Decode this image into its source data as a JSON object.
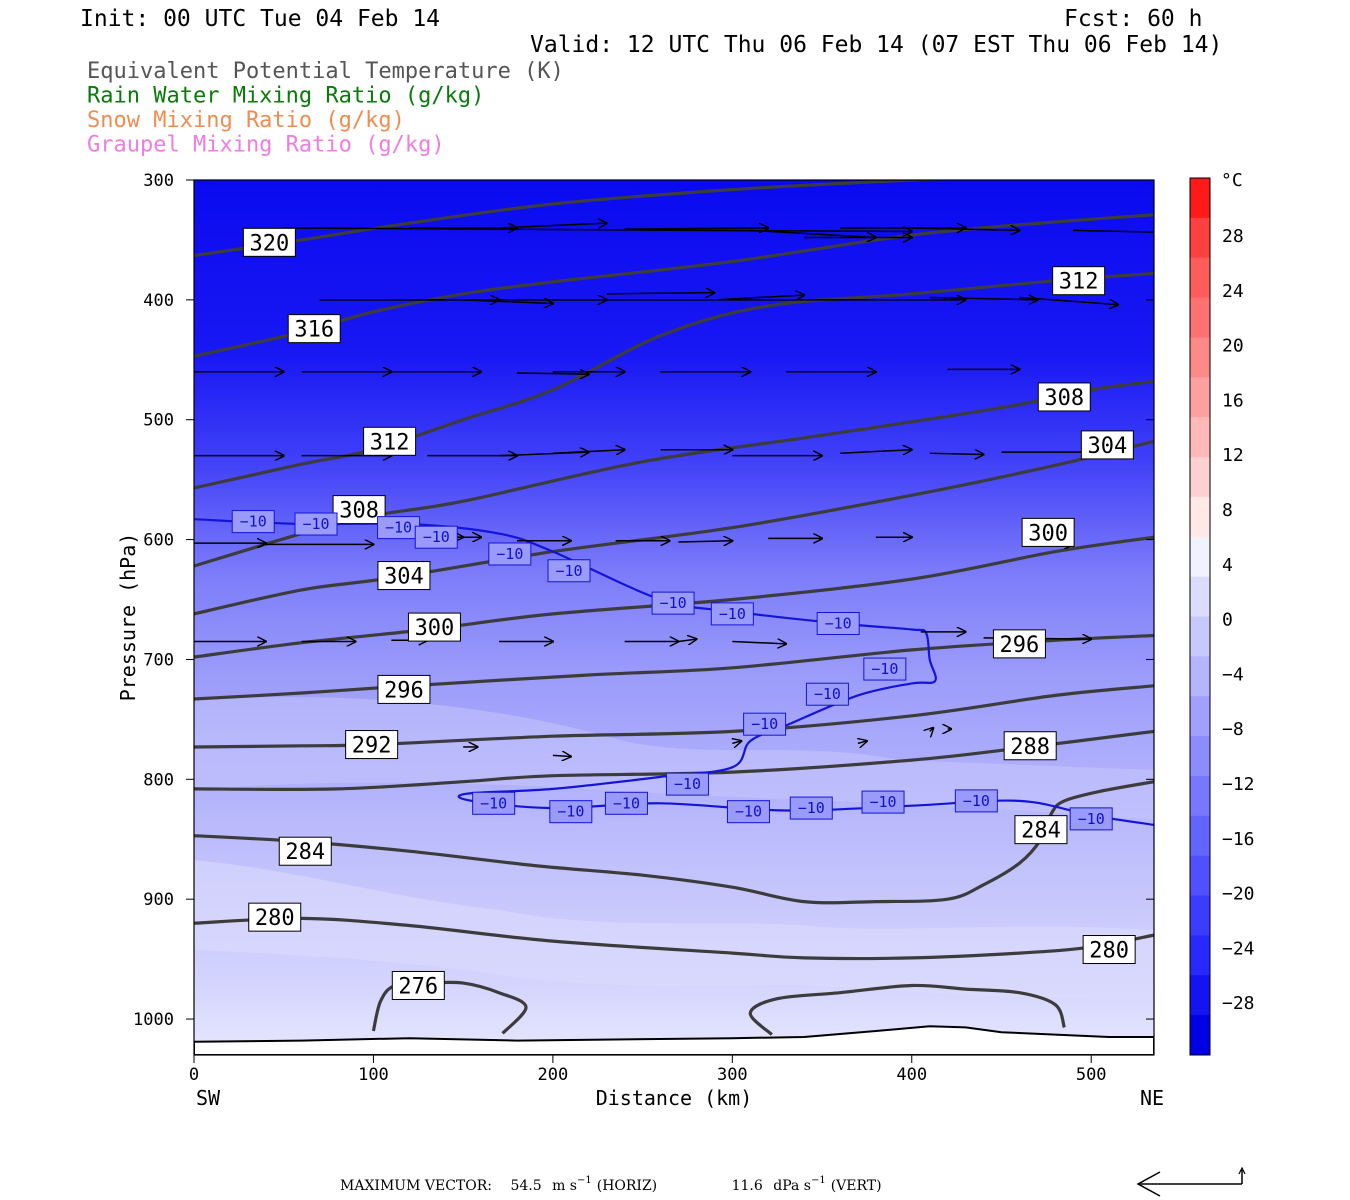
{
  "header": {
    "init": "Init: 00 UTC Tue 04 Feb 14",
    "fcst": "Fcst:   60 h",
    "valid": "Valid: 12 UTC Thu 06 Feb 14 (07 EST Thu 06 Feb 14)"
  },
  "fields": [
    {
      "label": "Equivalent Potential Temperature (K)",
      "color": "#555555"
    },
    {
      "label": "Rain Water Mixing Ratio (g/kg)",
      "color": "#0a7a0a"
    },
    {
      "label": "Snow Mixing Ratio (g/kg)",
      "color": "#f08c50"
    },
    {
      "label": "Graupel Mixing Ratio (g/kg)",
      "color": "#f07ce0"
    }
  ],
  "chart_data": {
    "type": "heatmap",
    "xlabel": "Distance (km)",
    "ylabel": "Pressure (hPa)",
    "xlim": [
      0,
      535
    ],
    "ylim": [
      1030,
      300
    ],
    "x_ticks": [
      0,
      100,
      200,
      300,
      400,
      500
    ],
    "y_ticks": [
      300,
      400,
      500,
      600,
      700,
      800,
      900,
      1000
    ],
    "x_end_labels": {
      "left": "SW",
      "right": "NE"
    },
    "colorbar": {
      "unit": "°C",
      "labels": [
        28,
        24,
        20,
        16,
        12,
        8,
        4,
        0,
        -4,
        -8,
        -12,
        -16,
        -20,
        -24,
        -28
      ],
      "colors": [
        "#ff1a1a",
        "#ff4040",
        "#ff5c5c",
        "#ff7070",
        "#ff8888",
        "#ffa0a0",
        "#ffb8b8",
        "#ffd0d0",
        "#ffe8e8",
        "#f2f2ff",
        "#dcdcff",
        "#c8c8ff",
        "#b4b4ff",
        "#a0a0ff",
        "#8c8cff",
        "#7878ff",
        "#6464ff",
        "#5050ff",
        "#3c3cff",
        "#2828ff",
        "#1414f0",
        "#0000e6"
      ]
    },
    "theta_e_contours": [
      {
        "level": 320,
        "points": [
          [
            0,
            363
          ],
          [
            60,
            350
          ],
          [
            120,
            336
          ],
          [
            200,
            320
          ],
          [
            300,
            308
          ],
          [
            400,
            300
          ],
          [
            480,
            295
          ],
          [
            535,
            290
          ]
        ],
        "labels": [
          [
            42,
            352
          ]
        ]
      },
      {
        "level": 316,
        "points": [
          [
            0,
            447
          ],
          [
            60,
            427
          ],
          [
            100,
            410
          ],
          [
            150,
            395
          ],
          [
            200,
            385
          ],
          [
            300,
            368
          ],
          [
            400,
            346
          ],
          [
            480,
            335
          ],
          [
            535,
            329
          ]
        ],
        "labels": [
          [
            67,
            424
          ]
        ]
      },
      {
        "level": 312,
        "points": [
          [
            0,
            557
          ],
          [
            60,
            537
          ],
          [
            100,
            525
          ],
          [
            150,
            500
          ],
          [
            200,
            475
          ],
          [
            260,
            430
          ],
          [
            320,
            405
          ],
          [
            400,
            395
          ],
          [
            480,
            384
          ],
          [
            535,
            378
          ]
        ],
        "labels": [
          [
            109,
            518
          ],
          [
            493,
            384
          ]
        ]
      },
      {
        "level": 308,
        "points": [
          [
            0,
            622
          ],
          [
            60,
            595
          ],
          [
            100,
            580
          ],
          [
            150,
            568
          ],
          [
            250,
            535
          ],
          [
            350,
            513
          ],
          [
            450,
            490
          ],
          [
            500,
            475
          ],
          [
            535,
            468
          ]
        ],
        "labels": [
          [
            92,
            575
          ],
          [
            485,
            481
          ]
        ]
      },
      {
        "level": 304,
        "points": [
          [
            0,
            662
          ],
          [
            60,
            642
          ],
          [
            110,
            632
          ],
          [
            200,
            610
          ],
          [
            300,
            590
          ],
          [
            400,
            563
          ],
          [
            480,
            538
          ],
          [
            535,
            518
          ]
        ],
        "labels": [
          [
            117,
            630
          ],
          [
            509,
            521
          ]
        ]
      },
      {
        "level": 300,
        "points": [
          [
            0,
            698
          ],
          [
            60,
            686
          ],
          [
            130,
            675
          ],
          [
            200,
            662
          ],
          [
            300,
            650
          ],
          [
            400,
            633
          ],
          [
            480,
            610
          ],
          [
            535,
            598
          ]
        ],
        "labels": [
          [
            134,
            673
          ],
          [
            476,
            594
          ]
        ]
      },
      {
        "level": 296,
        "points": [
          [
            0,
            733
          ],
          [
            60,
            728
          ],
          [
            120,
            722
          ],
          [
            220,
            713
          ],
          [
            300,
            707
          ],
          [
            400,
            692
          ],
          [
            480,
            684
          ],
          [
            535,
            680
          ]
        ],
        "labels": [
          [
            117,
            725
          ],
          [
            460,
            687
          ]
        ]
      },
      {
        "level": 292,
        "points": [
          [
            0,
            773
          ],
          [
            60,
            772
          ],
          [
            100,
            771
          ],
          [
            200,
            764
          ],
          [
            300,
            760
          ],
          [
            400,
            747
          ],
          [
            480,
            730
          ],
          [
            535,
            722
          ]
        ],
        "labels": [
          [
            99,
            771
          ]
        ]
      },
      {
        "level": 288,
        "points": [
          [
            0,
            808
          ],
          [
            80,
            808
          ],
          [
            150,
            802
          ],
          [
            200,
            797
          ],
          [
            300,
            794
          ],
          [
            400,
            784
          ],
          [
            460,
            774
          ],
          [
            535,
            760
          ]
        ],
        "labels": [
          [
            466,
            772
          ]
        ]
      },
      {
        "level": 284,
        "points": [
          [
            0,
            847
          ],
          [
            60,
            852
          ],
          [
            120,
            860
          ],
          [
            190,
            872
          ],
          [
            250,
            880
          ],
          [
            300,
            890
          ],
          [
            340,
            902
          ],
          [
            380,
            902
          ],
          [
            420,
            900
          ],
          [
            440,
            888
          ],
          [
            460,
            870
          ],
          [
            472,
            850
          ],
          [
            478,
            828
          ],
          [
            485,
            818
          ],
          [
            505,
            810
          ],
          [
            535,
            802
          ]
        ],
        "labels": [
          [
            62,
            860
          ],
          [
            472,
            842
          ]
        ]
      },
      {
        "level": 280,
        "points": [
          [
            0,
            920
          ],
          [
            60,
            916
          ],
          [
            120,
            922
          ],
          [
            200,
            935
          ],
          [
            300,
            945
          ],
          [
            340,
            949
          ],
          [
            400,
            949
          ],
          [
            460,
            945
          ],
          [
            500,
            940
          ],
          [
            535,
            930
          ]
        ],
        "labels": [
          [
            45,
            915
          ],
          [
            510,
            942
          ]
        ]
      },
      {
        "level": 276,
        "points": [
          [
            100,
            1010
          ],
          [
            104,
            985
          ],
          [
            112,
            972
          ],
          [
            130,
            970
          ],
          [
            150,
            970
          ],
          [
            170,
            978
          ],
          [
            185,
            990
          ],
          [
            172,
            1012
          ]
        ],
        "labels": [
          [
            125,
            972
          ]
        ]
      },
      {
        "level": 276,
        "points": [
          [
            322,
            1013
          ],
          [
            310,
            995
          ],
          [
            325,
            983
          ],
          [
            360,
            978
          ],
          [
            400,
            972
          ],
          [
            430,
            975
          ],
          [
            460,
            978
          ],
          [
            480,
            988
          ],
          [
            485,
            1007
          ]
        ],
        "labels": []
      }
    ],
    "temp_contours": [
      {
        "level": -10,
        "points": [
          [
            0,
            583
          ],
          [
            60,
            587
          ],
          [
            120,
            587
          ],
          [
            170,
            595
          ],
          [
            200,
            610
          ],
          [
            260,
            650
          ],
          [
            300,
            660
          ],
          [
            360,
            670
          ],
          [
            400,
            675
          ],
          [
            408,
            678
          ],
          [
            410,
            700
          ],
          [
            413,
            718
          ],
          [
            400,
            720
          ],
          [
            370,
            730
          ],
          [
            330,
            755
          ],
          [
            310,
            768
          ],
          [
            300,
            790
          ],
          [
            260,
            798
          ],
          [
            200,
            808
          ],
          [
            152,
            812
          ],
          [
            155,
            818
          ],
          [
            200,
            824
          ],
          [
            260,
            820
          ],
          [
            330,
            826
          ],
          [
            400,
            822
          ],
          [
            460,
            818
          ],
          [
            500,
            830
          ],
          [
            535,
            838
          ]
        ],
        "labels": [
          [
            33,
            585
          ],
          [
            68,
            587
          ],
          [
            114,
            590
          ],
          [
            135,
            598
          ],
          [
            176,
            612
          ],
          [
            209,
            626
          ],
          [
            267,
            653
          ],
          [
            300,
            662
          ],
          [
            359,
            670
          ],
          [
            385,
            708
          ],
          [
            353,
            729
          ],
          [
            318,
            754
          ],
          [
            275,
            804
          ],
          [
            167,
            820
          ],
          [
            210,
            827
          ],
          [
            241,
            820
          ],
          [
            309,
            827
          ],
          [
            344,
            824
          ],
          [
            384,
            819
          ],
          [
            436,
            818
          ],
          [
            500,
            833
          ]
        ]
      }
    ],
    "wind_arrows": [
      [
        50,
        340,
        400,
        343
      ],
      [
        70,
        400,
        430,
        400
      ],
      [
        110,
        400,
        170,
        400
      ],
      [
        120,
        340,
        180,
        340
      ],
      [
        150,
        400,
        200,
        403
      ],
      [
        170,
        340,
        230,
        336
      ],
      [
        180,
        400,
        230,
        400
      ],
      [
        230,
        395,
        290,
        394
      ],
      [
        240,
        341,
        320,
        340
      ],
      [
        290,
        400,
        340,
        396
      ],
      [
        310,
        342,
        380,
        348
      ],
      [
        340,
        348,
        400,
        348
      ],
      [
        360,
        340,
        430,
        340
      ],
      [
        400,
        340,
        460,
        342
      ],
      [
        410,
        398,
        470,
        400
      ],
      [
        460,
        398,
        515,
        404
      ],
      [
        490,
        342,
        550,
        344
      ],
      [
        0,
        460,
        50,
        460
      ],
      [
        60,
        460,
        110,
        460
      ],
      [
        100,
        460,
        160,
        460
      ],
      [
        180,
        461,
        220,
        462
      ],
      [
        200,
        460,
        240,
        460
      ],
      [
        260,
        460,
        310,
        460
      ],
      [
        330,
        460,
        380,
        460
      ],
      [
        420,
        458,
        460,
        458
      ],
      [
        0,
        530,
        50,
        530
      ],
      [
        60,
        530,
        110,
        530
      ],
      [
        130,
        530,
        180,
        530
      ],
      [
        170,
        530,
        220,
        527
      ],
      [
        200,
        528,
        240,
        525
      ],
      [
        260,
        525,
        300,
        525
      ],
      [
        300,
        530,
        350,
        530
      ],
      [
        360,
        528,
        400,
        525
      ],
      [
        410,
        528,
        440,
        529
      ],
      [
        450,
        527,
        520,
        527
      ],
      [
        0,
        603,
        40,
        603
      ],
      [
        40,
        604,
        100,
        604
      ],
      [
        130,
        597,
        150,
        598
      ],
      [
        140,
        598,
        160,
        598
      ],
      [
        180,
        601,
        210,
        601
      ],
      [
        235,
        601,
        265,
        601
      ],
      [
        270,
        602,
        300,
        601
      ],
      [
        320,
        599,
        350,
        599
      ],
      [
        380,
        598,
        400,
        598
      ],
      [
        470,
        603,
        490,
        604
      ],
      [
        0,
        685,
        40,
        685
      ],
      [
        60,
        685,
        90,
        685
      ],
      [
        110,
        684,
        130,
        684
      ],
      [
        170,
        685,
        200,
        685
      ],
      [
        240,
        685,
        270,
        685
      ],
      [
        300,
        685,
        330,
        687
      ],
      [
        440,
        682,
        500,
        683
      ],
      [
        405,
        677,
        430,
        677
      ],
      [
        270,
        685,
        280,
        683
      ],
      [
        300,
        770,
        305,
        768
      ],
      [
        370,
        770,
        375,
        768
      ],
      [
        410,
        760,
        412,
        757
      ],
      [
        420,
        758,
        422,
        758
      ],
      [
        200,
        780,
        210,
        781
      ],
      [
        150,
        773,
        158,
        773
      ]
    ],
    "footer": {
      "max_vector_label": "MAXIMUM VECTOR:",
      "horiz_value": "54.5",
      "horiz_unit": "m s",
      "horiz_exp": "−1",
      "horiz_tag": "(HORIZ)",
      "vert_value": "11.6",
      "vert_unit": "dPa s",
      "vert_exp": "−1",
      "vert_tag": "(VERT)"
    }
  }
}
